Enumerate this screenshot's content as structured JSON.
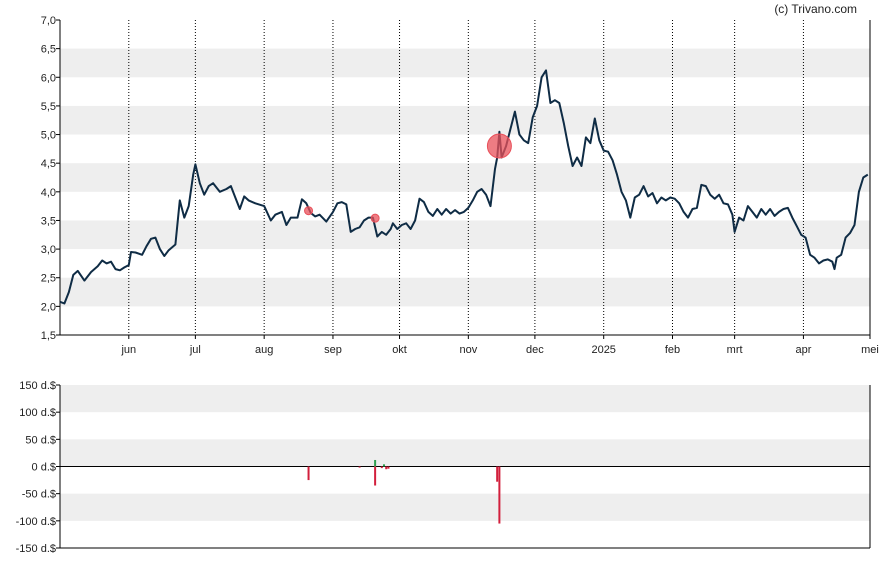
{
  "credit": "(c) Trivano.com",
  "colors": {
    "band": "#eeeeee",
    "price_line": "#0f2c45",
    "marker": "#e8505a",
    "bar_negative": "#d21f3c",
    "bar_positive": "#2e9e4f",
    "axis": "#000000",
    "vgrid": "#000000"
  },
  "chart_data": [
    {
      "type": "line",
      "title": "",
      "ylabel": "",
      "xlabel": "",
      "ylim": [
        1.5,
        7.0
      ],
      "yticks": [
        "7,0",
        "6,5",
        "6,0",
        "5,5",
        "5,0",
        "4,5",
        "4,0",
        "3,5",
        "3,0",
        "2,5",
        "2,0",
        "1,5"
      ],
      "ytick_values": [
        7.0,
        6.5,
        6.0,
        5.5,
        5.0,
        4.5,
        4.0,
        3.5,
        3.0,
        2.5,
        2.0,
        1.5
      ],
      "xlim": [
        "2024-05-01",
        "2025-05-01"
      ],
      "month_labels": [
        {
          "label": "jun",
          "date": "2024-06-01"
        },
        {
          "label": "jul",
          "date": "2024-07-01"
        },
        {
          "label": "aug",
          "date": "2024-08-01"
        },
        {
          "label": "sep",
          "date": "2024-09-01"
        },
        {
          "label": "okt",
          "date": "2024-10-01"
        },
        {
          "label": "nov",
          "date": "2024-11-01"
        },
        {
          "label": "dec",
          "date": "2024-12-01"
        },
        {
          "label": "2025",
          "date": "2025-01-01"
        },
        {
          "label": "feb",
          "date": "2025-02-01"
        },
        {
          "label": "mrt",
          "date": "2025-03-01"
        },
        {
          "label": "apr",
          "date": "2025-04-01"
        },
        {
          "label": "mei",
          "date": "2025-05-01"
        }
      ],
      "grid": "dotted vertical at month starts, alternating horizontal bands",
      "series": [
        {
          "points": [
            [
              "2024-05-01",
              2.08
            ],
            [
              "2024-05-03",
              2.05
            ],
            [
              "2024-05-05",
              2.25
            ],
            [
              "2024-05-07",
              2.55
            ],
            [
              "2024-05-09",
              2.62
            ],
            [
              "2024-05-12",
              2.45
            ],
            [
              "2024-05-15",
              2.6
            ],
            [
              "2024-05-18",
              2.7
            ],
            [
              "2024-05-20",
              2.8
            ],
            [
              "2024-05-22",
              2.75
            ],
            [
              "2024-05-24",
              2.78
            ],
            [
              "2024-05-26",
              2.65
            ],
            [
              "2024-05-28",
              2.63
            ],
            [
              "2024-05-30",
              2.68
            ],
            [
              "2024-06-01",
              2.72
            ],
            [
              "2024-06-02",
              2.95
            ],
            [
              "2024-06-04",
              2.94
            ],
            [
              "2024-06-07",
              2.9
            ],
            [
              "2024-06-09",
              3.05
            ],
            [
              "2024-06-11",
              3.18
            ],
            [
              "2024-06-13",
              3.2
            ],
            [
              "2024-06-15",
              3.0
            ],
            [
              "2024-06-17",
              2.88
            ],
            [
              "2024-06-19",
              2.98
            ],
            [
              "2024-06-22",
              3.08
            ],
            [
              "2024-06-24",
              3.85
            ],
            [
              "2024-06-26",
              3.55
            ],
            [
              "2024-06-28",
              3.75
            ],
            [
              "2024-06-30",
              4.3
            ],
            [
              "2024-07-01",
              4.48
            ],
            [
              "2024-07-03",
              4.15
            ],
            [
              "2024-07-05",
              3.95
            ],
            [
              "2024-07-07",
              4.1
            ],
            [
              "2024-07-09",
              4.15
            ],
            [
              "2024-07-12",
              4.0
            ],
            [
              "2024-07-15",
              4.05
            ],
            [
              "2024-07-17",
              4.1
            ],
            [
              "2024-07-19",
              3.9
            ],
            [
              "2024-07-21",
              3.7
            ],
            [
              "2024-07-23",
              3.92
            ],
            [
              "2024-07-25",
              3.85
            ],
            [
              "2024-07-28",
              3.8
            ],
            [
              "2024-08-01",
              3.75
            ],
            [
              "2024-08-04",
              3.5
            ],
            [
              "2024-08-06",
              3.6
            ],
            [
              "2024-08-09",
              3.65
            ],
            [
              "2024-08-11",
              3.42
            ],
            [
              "2024-08-13",
              3.55
            ],
            [
              "2024-08-16",
              3.55
            ],
            [
              "2024-08-18",
              3.87
            ],
            [
              "2024-08-20",
              3.8
            ],
            [
              "2024-08-22",
              3.63
            ],
            [
              "2024-08-24",
              3.57
            ],
            [
              "2024-08-26",
              3.6
            ],
            [
              "2024-08-29",
              3.48
            ],
            [
              "2024-09-01",
              3.65
            ],
            [
              "2024-09-03",
              3.8
            ],
            [
              "2024-09-05",
              3.82
            ],
            [
              "2024-09-07",
              3.78
            ],
            [
              "2024-09-09",
              3.3
            ],
            [
              "2024-09-11",
              3.35
            ],
            [
              "2024-09-13",
              3.38
            ],
            [
              "2024-09-15",
              3.5
            ],
            [
              "2024-09-17",
              3.55
            ],
            [
              "2024-09-19",
              3.55
            ],
            [
              "2024-09-21",
              3.22
            ],
            [
              "2024-09-23",
              3.3
            ],
            [
              "2024-09-25",
              3.25
            ],
            [
              "2024-09-27",
              3.35
            ],
            [
              "2024-09-28",
              3.45
            ],
            [
              "2024-09-30",
              3.35
            ],
            [
              "2024-10-02",
              3.42
            ],
            [
              "2024-10-04",
              3.45
            ],
            [
              "2024-10-06",
              3.35
            ],
            [
              "2024-10-08",
              3.5
            ],
            [
              "2024-10-10",
              3.88
            ],
            [
              "2024-10-12",
              3.82
            ],
            [
              "2024-10-14",
              3.65
            ],
            [
              "2024-10-16",
              3.58
            ],
            [
              "2024-10-18",
              3.7
            ],
            [
              "2024-10-20",
              3.6
            ],
            [
              "2024-10-22",
              3.7
            ],
            [
              "2024-10-24",
              3.62
            ],
            [
              "2024-10-26",
              3.68
            ],
            [
              "2024-10-28",
              3.62
            ],
            [
              "2024-10-30",
              3.65
            ],
            [
              "2024-11-01",
              3.72
            ],
            [
              "2024-11-03",
              3.85
            ],
            [
              "2024-11-05",
              4.0
            ],
            [
              "2024-11-07",
              4.05
            ],
            [
              "2024-11-09",
              3.95
            ],
            [
              "2024-11-11",
              3.75
            ],
            [
              "2024-11-13",
              4.4
            ],
            [
              "2024-11-14",
              4.6
            ],
            [
              "2024-11-15",
              5.05
            ],
            [
              "2024-11-16",
              4.6
            ],
            [
              "2024-11-18",
              4.8
            ],
            [
              "2024-11-20",
              5.1
            ],
            [
              "2024-11-22",
              5.4
            ],
            [
              "2024-11-24",
              5.0
            ],
            [
              "2024-11-26",
              4.9
            ],
            [
              "2024-11-28",
              4.85
            ],
            [
              "2024-11-30",
              5.3
            ],
            [
              "2024-12-02",
              5.5
            ],
            [
              "2024-12-04",
              6.0
            ],
            [
              "2024-12-06",
              6.12
            ],
            [
              "2024-12-08",
              5.55
            ],
            [
              "2024-12-10",
              5.6
            ],
            [
              "2024-12-12",
              5.55
            ],
            [
              "2024-12-14",
              5.2
            ],
            [
              "2024-12-16",
              4.8
            ],
            [
              "2024-12-18",
              4.45
            ],
            [
              "2024-12-20",
              4.6
            ],
            [
              "2024-12-22",
              4.45
            ],
            [
              "2024-12-24",
              4.95
            ],
            [
              "2024-12-26",
              4.85
            ],
            [
              "2024-12-28",
              5.28
            ],
            [
              "2024-12-30",
              4.9
            ],
            [
              "2025-01-01",
              4.72
            ],
            [
              "2025-01-03",
              4.7
            ],
            [
              "2025-01-05",
              4.55
            ],
            [
              "2025-01-07",
              4.3
            ],
            [
              "2025-01-09",
              4.0
            ],
            [
              "2025-01-11",
              3.85
            ],
            [
              "2025-01-13",
              3.55
            ],
            [
              "2025-01-15",
              3.9
            ],
            [
              "2025-01-17",
              3.95
            ],
            [
              "2025-01-19",
              4.1
            ],
            [
              "2025-01-21",
              3.92
            ],
            [
              "2025-01-23",
              3.98
            ],
            [
              "2025-01-25",
              3.8
            ],
            [
              "2025-01-27",
              3.9
            ],
            [
              "2025-01-29",
              3.85
            ],
            [
              "2025-01-31",
              3.9
            ],
            [
              "2025-02-02",
              3.88
            ],
            [
              "2025-02-04",
              3.8
            ],
            [
              "2025-02-06",
              3.65
            ],
            [
              "2025-02-08",
              3.55
            ],
            [
              "2025-02-10",
              3.7
            ],
            [
              "2025-02-12",
              3.72
            ],
            [
              "2025-02-14",
              4.12
            ],
            [
              "2025-02-16",
              4.1
            ],
            [
              "2025-02-18",
              3.95
            ],
            [
              "2025-02-20",
              3.88
            ],
            [
              "2025-02-22",
              3.95
            ],
            [
              "2025-02-24",
              3.8
            ],
            [
              "2025-02-26",
              3.78
            ],
            [
              "2025-02-28",
              3.6
            ],
            [
              "2025-03-01",
              3.3
            ],
            [
              "2025-03-03",
              3.55
            ],
            [
              "2025-03-05",
              3.5
            ],
            [
              "2025-03-07",
              3.75
            ],
            [
              "2025-03-09",
              3.65
            ],
            [
              "2025-03-11",
              3.55
            ],
            [
              "2025-03-13",
              3.7
            ],
            [
              "2025-03-15",
              3.6
            ],
            [
              "2025-03-17",
              3.7
            ],
            [
              "2025-03-19",
              3.58
            ],
            [
              "2025-03-21",
              3.65
            ],
            [
              "2025-03-23",
              3.7
            ],
            [
              "2025-03-25",
              3.72
            ],
            [
              "2025-03-27",
              3.55
            ],
            [
              "2025-03-29",
              3.4
            ],
            [
              "2025-03-31",
              3.25
            ],
            [
              "2025-04-02",
              3.2
            ],
            [
              "2025-04-04",
              2.9
            ],
            [
              "2025-04-06",
              2.85
            ],
            [
              "2025-04-08",
              2.75
            ],
            [
              "2025-04-10",
              2.8
            ],
            [
              "2025-04-12",
              2.82
            ],
            [
              "2025-04-14",
              2.78
            ],
            [
              "2025-04-15",
              2.65
            ],
            [
              "2025-04-16",
              2.85
            ],
            [
              "2025-04-18",
              2.9
            ],
            [
              "2025-04-20",
              3.2
            ],
            [
              "2025-04-22",
              3.28
            ],
            [
              "2025-04-24",
              3.42
            ],
            [
              "2025-04-26",
              4.0
            ],
            [
              "2025-04-28",
              4.25
            ],
            [
              "2025-04-30",
              4.3
            ]
          ]
        }
      ],
      "markers": [
        {
          "date": "2024-08-21",
          "value": 3.67,
          "size": "small"
        },
        {
          "date": "2024-09-20",
          "value": 3.54,
          "size": "small"
        },
        {
          "date": "2024-11-15",
          "value": 4.8,
          "size": "large"
        }
      ]
    },
    {
      "type": "bar",
      "title": "",
      "ylabel": "",
      "ylim": [
        -150,
        150
      ],
      "yticks": [
        "150 d.$",
        "100 d.$",
        "50 d.$",
        "0 d.$",
        "-50 d.$",
        "-100 d.$",
        "-150 d.$"
      ],
      "ytick_values": [
        150,
        100,
        50,
        0,
        -50,
        -100,
        -150
      ],
      "xlim": [
        "2024-05-01",
        "2025-05-01"
      ],
      "bars": [
        {
          "date": "2024-08-21",
          "value": -25
        },
        {
          "date": "2024-09-13",
          "value": -2
        },
        {
          "date": "2024-09-20",
          "value": -35
        },
        {
          "date": "2024-09-20",
          "value": 12
        },
        {
          "date": "2024-09-23",
          "value": -3
        },
        {
          "date": "2024-09-24",
          "value": 4
        },
        {
          "date": "2024-09-25",
          "value": -5
        },
        {
          "date": "2024-09-26",
          "value": -4
        },
        {
          "date": "2024-11-14",
          "value": -28
        },
        {
          "date": "2024-11-15",
          "value": -105
        }
      ]
    }
  ]
}
